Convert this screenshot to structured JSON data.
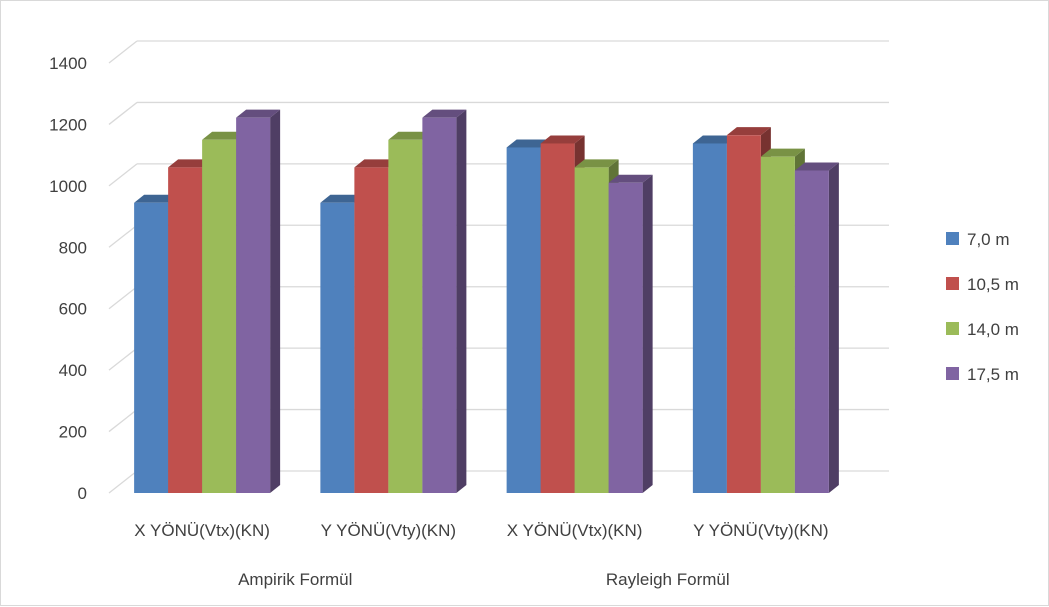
{
  "chart_data": {
    "type": "bar",
    "subtype": "3d-clustered-column",
    "group_labels": [
      "Ampirik Formül",
      "Rayleigh Formül"
    ],
    "categories": [
      "X YÖNÜ(Vtx)(KN)",
      "Y YÖNÜ(Vty)(KN)",
      "X YÖNÜ(Vtx)(KN)",
      "Y YÖNÜ(Vty)(KN)"
    ],
    "series": [
      {
        "name": "7,0 m",
        "color": "#4f81bd",
        "values": [
          945,
          945,
          1125,
          1138
        ]
      },
      {
        "name": "10,5 m",
        "color": "#c0504d",
        "values": [
          1060,
          1060,
          1138,
          1165
        ]
      },
      {
        "name": "14,0 m",
        "color": "#9bbb59",
        "values": [
          1150,
          1150,
          1060,
          1095
        ]
      },
      {
        "name": "17,5 m",
        "color": "#8064a2",
        "values": [
          1222,
          1222,
          1010,
          1050
        ]
      }
    ],
    "y_ticks": [
      "0",
      "200",
      "400",
      "600",
      "800",
      "1000",
      "1200",
      "1400"
    ],
    "ylim": [
      0,
      1400
    ],
    "grid": true,
    "legend_position": "right",
    "title": "",
    "xlabel": "",
    "ylabel": ""
  }
}
